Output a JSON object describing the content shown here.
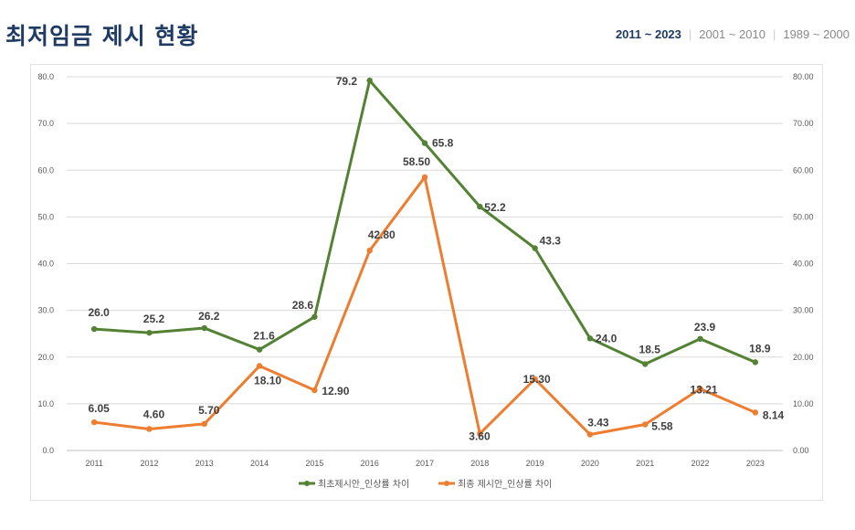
{
  "header": {
    "title": "최저임금 제시 현황",
    "tabs": [
      {
        "label": "2011 ~ 2023",
        "active": true
      },
      {
        "label": "2001 ~ 2010",
        "active": false
      },
      {
        "label": "1989 ~ 2000",
        "active": false
      }
    ]
  },
  "colors": {
    "series1": "#548235",
    "series2": "#ed7d31",
    "grid": "#d9d9d9",
    "title": "#1f3b63"
  },
  "chart_data": {
    "type": "line",
    "title": "",
    "categories": [
      "2011",
      "2012",
      "2013",
      "2014",
      "2015",
      "2016",
      "2017",
      "2018",
      "2019",
      "2020",
      "2021",
      "2022",
      "2023"
    ],
    "series": [
      {
        "name": "최초제시안_인상률 차이",
        "values": [
          26.0,
          25.2,
          26.2,
          21.6,
          28.6,
          79.2,
          65.8,
          52.2,
          43.3,
          24.0,
          18.5,
          23.9,
          18.9
        ],
        "labels": [
          "26.0",
          "25.2",
          "26.2",
          "21.6",
          "28.6",
          "79.2",
          "65.8",
          "52.2",
          "43.3",
          "24.0",
          "18.5",
          "23.9",
          "18.9"
        ]
      },
      {
        "name": "최종 제시안_인상률 차이",
        "values": [
          6.05,
          4.6,
          5.7,
          18.1,
          12.9,
          42.8,
          58.5,
          3.6,
          15.3,
          3.43,
          5.58,
          13.21,
          8.14
        ],
        "labels": [
          "6.05",
          "4.60",
          "5.70",
          "18.10",
          "12.90",
          "42.80",
          "58.50",
          "3.60",
          "15.30",
          "3.43",
          "5.58",
          "13.21",
          "8.14"
        ]
      }
    ],
    "yleft": {
      "ticks": [
        "0.0",
        "10.0",
        "20.0",
        "30.0",
        "40.0",
        "50.0",
        "60.0",
        "70.0",
        "80.0"
      ],
      "ylim": [
        0,
        80
      ]
    },
    "yright": {
      "ticks": [
        "0.00",
        "10.00",
        "20.00",
        "30.00",
        "40.00",
        "50.00",
        "60.00",
        "70.00",
        "80.00"
      ],
      "ylim": [
        0,
        80
      ]
    },
    "grid": true,
    "legend": "bottom"
  }
}
